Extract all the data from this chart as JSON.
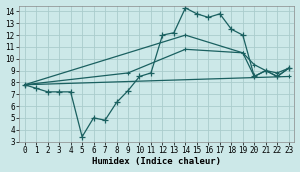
{
  "bg_color": "#cce8e8",
  "grid_color": "#aacccc",
  "line_color": "#1a6060",
  "xlabel": "Humidex (Indice chaleur)",
  "ylim": [
    3,
    14.5
  ],
  "xlim": [
    -0.5,
    23.5
  ],
  "yticks": [
    3,
    4,
    5,
    6,
    7,
    8,
    9,
    10,
    11,
    12,
    13,
    14
  ],
  "xticks": [
    0,
    1,
    2,
    3,
    4,
    5,
    6,
    7,
    8,
    9,
    10,
    11,
    12,
    13,
    14,
    15,
    16,
    17,
    18,
    19,
    20,
    21,
    22,
    23
  ],
  "line1_x": [
    0,
    1,
    2,
    3,
    4,
    5,
    6,
    7,
    8,
    9,
    10,
    11,
    12,
    13,
    14,
    15,
    16,
    17,
    18,
    19,
    20,
    21,
    22,
    23
  ],
  "line1_y": [
    7.8,
    7.5,
    7.2,
    7.2,
    7.2,
    3.4,
    5.0,
    4.8,
    6.3,
    7.3,
    8.5,
    8.8,
    12.0,
    12.2,
    14.3,
    13.8,
    13.5,
    13.8,
    12.5,
    12.0,
    8.5,
    9.0,
    8.5,
    9.2
  ],
  "line2_x": [
    0,
    9,
    14,
    19,
    20,
    21,
    22,
    23
  ],
  "line2_y": [
    7.8,
    8.8,
    10.8,
    10.5,
    9.5,
    9.0,
    8.8,
    9.2
  ],
  "line3_x": [
    0,
    23
  ],
  "line3_y": [
    7.8,
    8.5
  ],
  "line4_x": [
    0,
    14,
    19,
    20,
    21,
    22,
    23
  ],
  "line4_y": [
    7.8,
    12.0,
    10.5,
    8.5,
    9.0,
    8.5,
    9.2
  ]
}
